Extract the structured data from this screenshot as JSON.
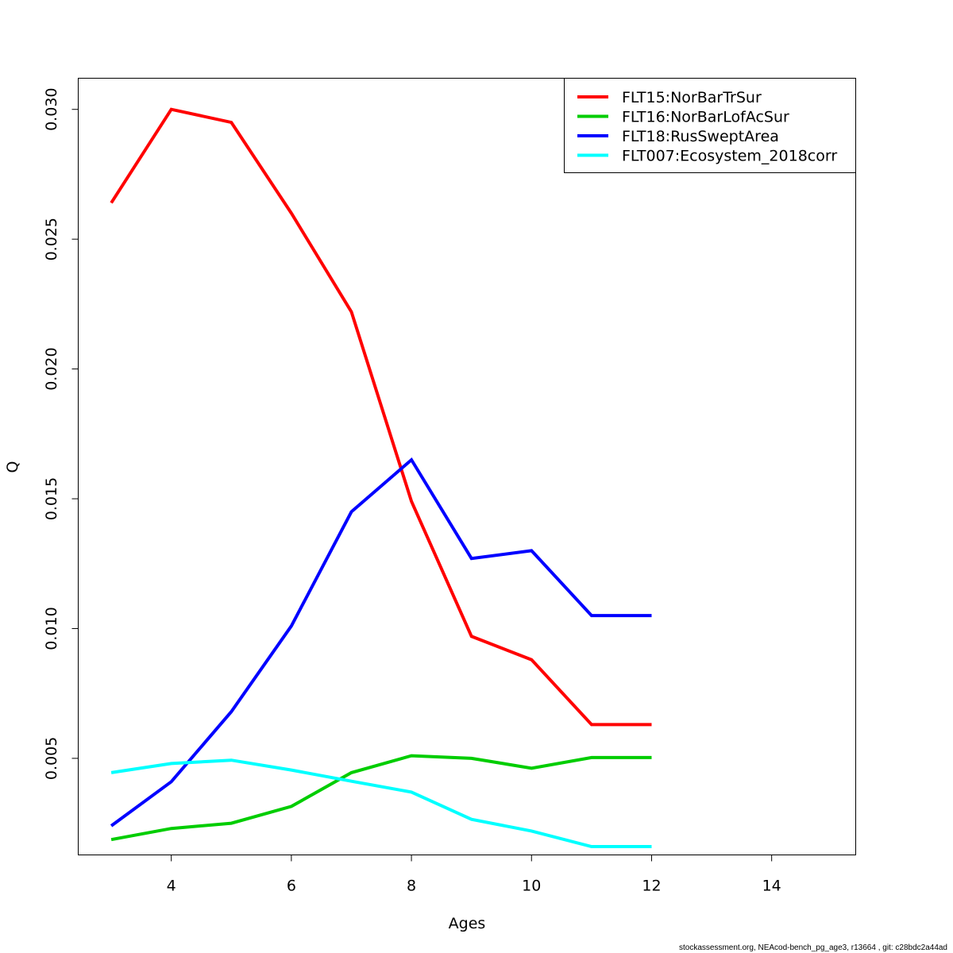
{
  "chart_data": {
    "type": "line",
    "xlabel": "Ages",
    "ylabel": "Q",
    "xlim": [
      2.45,
      15.4
    ],
    "ylim": [
      0.00128,
      0.0312
    ],
    "x_ticks": [
      4,
      6,
      8,
      10,
      12,
      14
    ],
    "x_tick_labels": [
      "4",
      "6",
      "8",
      "10",
      "12",
      "14"
    ],
    "y_ticks": [
      0.005,
      0.01,
      0.015,
      0.02,
      0.025,
      0.03
    ],
    "y_tick_labels": [
      "0.005",
      "0.010",
      "0.015",
      "0.020",
      "0.025",
      "0.030"
    ],
    "grid": false,
    "legend_position": "top-right",
    "x": [
      3,
      4,
      5,
      6,
      7,
      8,
      9,
      10,
      11,
      12
    ],
    "series": [
      {
        "name": "FLT15:NorBarTrSur",
        "color": "#ff0000",
        "values": [
          0.0264,
          0.03,
          0.0295,
          0.026,
          0.0222,
          0.0149,
          0.0097,
          0.0088,
          0.0063,
          0.0063
        ]
      },
      {
        "name": "FLT16:NorBarLofAcSur",
        "color": "#00cd00",
        "values": [
          0.00187,
          0.0023,
          0.0025,
          0.00315,
          0.00445,
          0.0051,
          0.005,
          0.00462,
          0.00503,
          0.00503
        ]
      },
      {
        "name": "FLT18:RusSweptArea",
        "color": "#0000ff",
        "values": [
          0.0024,
          0.0041,
          0.0068,
          0.0101,
          0.0145,
          0.0165,
          0.0127,
          0.013,
          0.0105,
          0.0105
        ]
      },
      {
        "name": "FLT007:Ecosystem_2018corr",
        "color": "#00ffff",
        "values": [
          0.00445,
          0.0048,
          0.00493,
          0.00455,
          0.00412,
          0.0037,
          0.00265,
          0.0022,
          0.0016,
          0.0016
        ]
      }
    ]
  },
  "footer": {
    "text": "stockassessment.org, NEAcod-bench_pg_age3, r13664 , git: c28bdc2a44ad"
  }
}
